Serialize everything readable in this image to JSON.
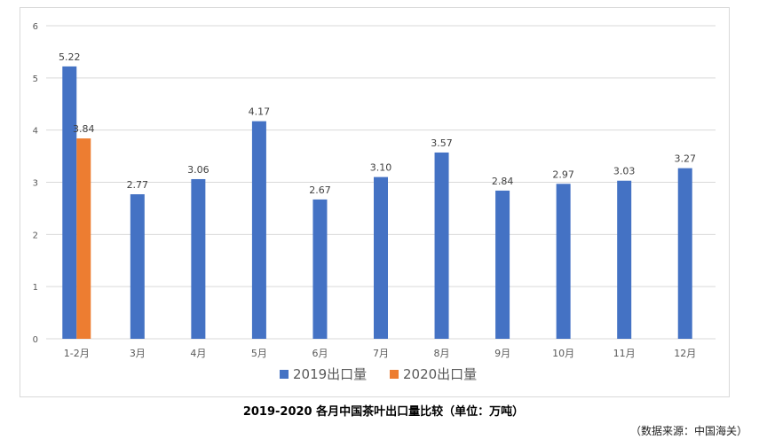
{
  "caption": "2019-2020 各月中国茶叶出口量比较（单位：万吨）",
  "source": "（数据来源：中国海关）",
  "colors": {
    "series_2019": "#4472c4",
    "series_2020": "#ed7d31",
    "grid": "#d9d9d9",
    "text": "#595959"
  },
  "chart_data": {
    "type": "bar",
    "title": "",
    "xlabel": "",
    "ylabel": "",
    "ylim": [
      0,
      6
    ],
    "yticks": [
      0,
      1,
      2,
      3,
      4,
      5,
      6
    ],
    "grid": true,
    "legend_position": "bottom",
    "categories": [
      "1-2月",
      "3月",
      "4月",
      "5月",
      "6月",
      "7月",
      "8月",
      "9月",
      "10月",
      "11月",
      "12月"
    ],
    "series": [
      {
        "name": "2019出口量",
        "color": "#4472c4",
        "values": [
          5.22,
          2.77,
          3.06,
          4.17,
          2.67,
          3.1,
          3.57,
          2.84,
          2.97,
          3.03,
          3.27
        ],
        "labels": [
          "5.22",
          "2.77",
          "3.06",
          "4.17",
          "2.67",
          "3.10",
          "3.57",
          "2.84",
          "2.97",
          "3.03",
          "3.27"
        ]
      },
      {
        "name": "2020出口量",
        "color": "#ed7d31",
        "values": [
          3.84,
          null,
          null,
          null,
          null,
          null,
          null,
          null,
          null,
          null,
          null
        ],
        "labels": [
          "3.84",
          null,
          null,
          null,
          null,
          null,
          null,
          null,
          null,
          null,
          null
        ]
      }
    ]
  }
}
